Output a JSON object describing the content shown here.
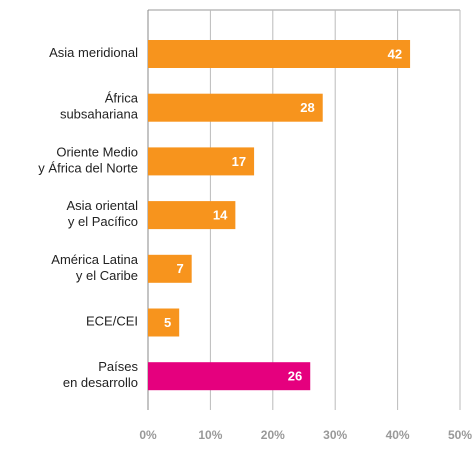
{
  "chart_data": {
    "type": "hbar",
    "categories": [
      [
        "Asia meridional"
      ],
      [
        "África",
        "subsahariana"
      ],
      [
        "Oriente Medio",
        "y África del Norte"
      ],
      [
        "Asia oriental",
        "y el Pacífico"
      ],
      [
        "América Latina",
        "y el Caribe"
      ],
      [
        "ECE/CEI"
      ],
      [
        "Países",
        "en desarrollo"
      ]
    ],
    "values": [
      42,
      28,
      17,
      14,
      7,
      5,
      26
    ],
    "colors": [
      "#f7941d",
      "#f7941d",
      "#f7941d",
      "#f7941d",
      "#f7941d",
      "#f7941d",
      "#e5007e"
    ],
    "xlim": [
      0,
      50
    ],
    "xticks": [
      {
        "value": 0,
        "label": "0%"
      },
      {
        "value": 10,
        "label": "10%"
      },
      {
        "value": 20,
        "label": "20%"
      },
      {
        "value": 30,
        "label": "30%"
      },
      {
        "value": 40,
        "label": "40%"
      },
      {
        "value": 50,
        "label": "50%"
      }
    ],
    "grid": true
  }
}
